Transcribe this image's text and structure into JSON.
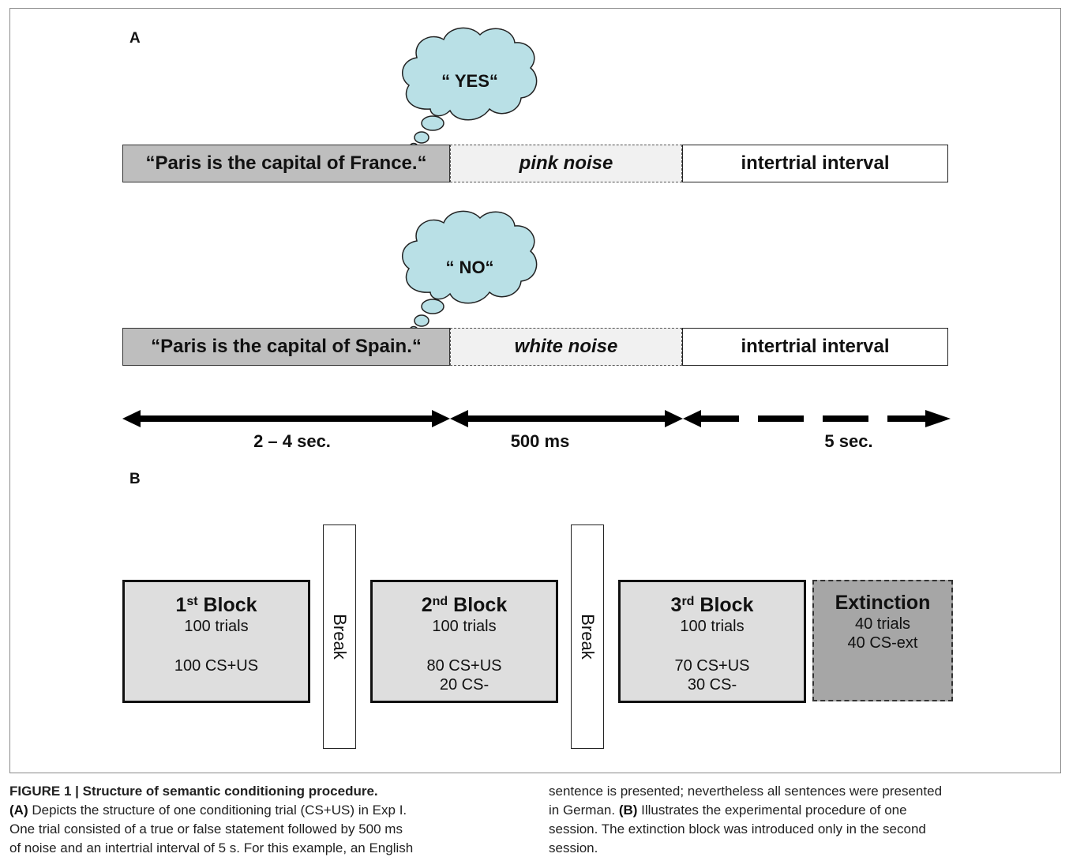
{
  "panel_a_label": "A",
  "panel_b_label": "B",
  "trial1": {
    "thought": "“ YES“",
    "statement": "“Paris is the capital of France.“",
    "noise": "pink noise",
    "iti": "intertrial interval"
  },
  "trial2": {
    "thought": "“ NO“",
    "statement": "“Paris is the capital of Spain.“",
    "noise": "white noise",
    "iti": "intertrial interval"
  },
  "durations": {
    "statement": "2 – 4 sec.",
    "noise": "500 ms",
    "iti": "5 sec."
  },
  "blocks": [
    {
      "num": "1",
      "sup": "st",
      "word": " Block",
      "trials": "100 trials",
      "line1": "100 CS+US",
      "line2": ""
    },
    {
      "num": "2",
      "sup": "nd",
      "word": " Block",
      "trials": "100 trials",
      "line1": "80 CS+US",
      "line2": "20 CS-"
    },
    {
      "num": "3",
      "sup": "rd",
      "word": " Block",
      "trials": "100 trials",
      "line1": "70 CS+US",
      "line2": "30 CS-"
    }
  ],
  "extinction": {
    "title": "Extinction",
    "trials": "40 trials",
    "line1": "40 CS-ext"
  },
  "break_label": "Break",
  "caption": {
    "title": "FIGURE 1 | Structure of semantic conditioning procedure.",
    "a_tag": "(A)",
    "a_text1": " Depicts the structure of one conditioning trial (CS+US) in Exp I.",
    "a_text2": "One trial consisted of a true or false statement followed by 500 ms",
    "a_text3": "of noise and an intertrial interval of 5 s. For this example, an English",
    "r_line1": "sentence is presented; nevertheless all sentences were presented",
    "r_line2a": "in German. ",
    "b_tag": "(B)",
    "r_line2b": " Illustrates the experimental procedure of one",
    "r_line3": "session. The extinction block was introduced only in the second",
    "r_line4": "session."
  },
  "colors": {
    "cloud": "#b9e0e6",
    "stimulus": "#bebebe",
    "block": "#dedede",
    "extinction": "#a6a6a6"
  },
  "icons": [
    "thought-cloud-icon",
    "double-arrow-icon",
    "dashed-arrow-icon"
  ]
}
